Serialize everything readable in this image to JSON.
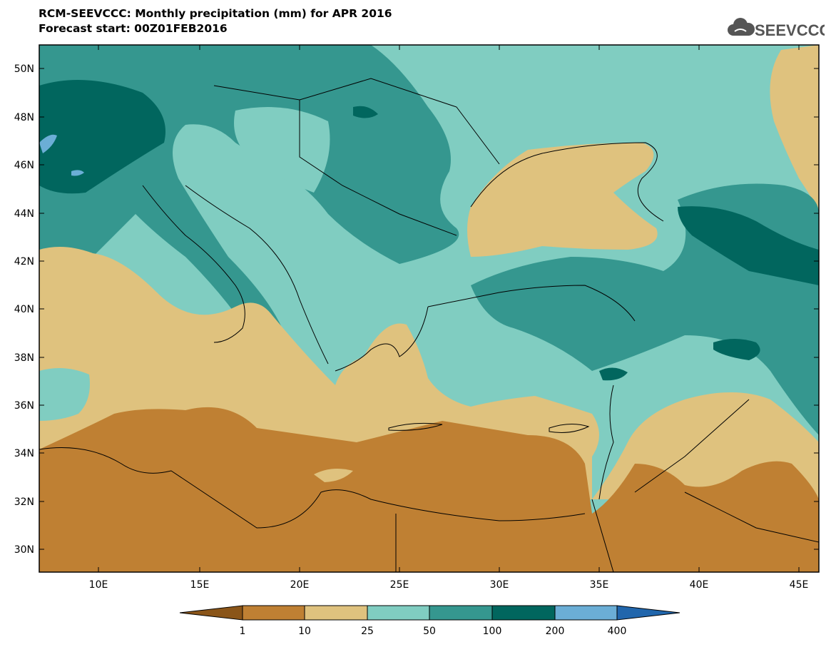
{
  "title": {
    "line1": "RCM-SEEVCCC: Monthly precipitation (mm) for APR 2016",
    "line2": "Forecast start: 00Z01FEB2016"
  },
  "logo": {
    "text": "SEEVCCC",
    "icon": "cloud-icon"
  },
  "axes": {
    "lat_labels": [
      "50N",
      "48N",
      "46N",
      "44N",
      "42N",
      "40N",
      "38N",
      "36N",
      "34N",
      "32N",
      "30N"
    ],
    "lon_labels": [
      "10E",
      "15E",
      "20E",
      "25E",
      "30E",
      "35E",
      "40E",
      "45E"
    ]
  },
  "colorbar": {
    "labels": [
      "1",
      "10",
      "25",
      "50",
      "100",
      "200",
      "400"
    ],
    "colors": [
      "#8a5519",
      "#bf8033",
      "#dfc27e",
      "#80cdc1",
      "#35978f",
      "#01665e",
      "#6baed6",
      "#2166ac"
    ]
  },
  "colors": {
    "land_dry": "#bf8033",
    "land_semi": "#dfc27e",
    "moist": "#80cdc1",
    "wet": "#35978f",
    "very_wet": "#01665e",
    "extreme": "#6baed6"
  }
}
